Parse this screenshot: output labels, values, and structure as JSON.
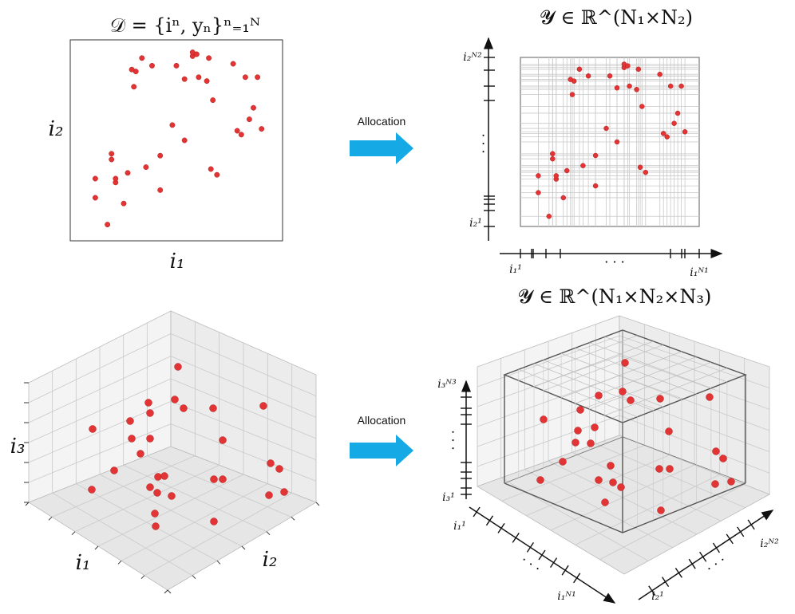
{
  "titles": {
    "dataset": "𝒟 = {iⁿ, yₙ}ⁿ₌₁ᴺ",
    "tensor2d": "𝓨 ∈ ℝ^(N₁×N₂)",
    "tensor3d": "𝓨 ∈ ℝ^(N₁×N₂×N₃)"
  },
  "arrow_labels": {
    "top": "Allocation",
    "bottom": "Allocation"
  },
  "axis_labels": {
    "scatter_x": "i₁",
    "scatter_y": "i₂",
    "cube_left_x": "i₁",
    "cube_left_y": "i₂",
    "cube_left_z": "i₃",
    "grid_x_start": "i₁¹",
    "grid_x_end": "i₁ᴺ¹",
    "grid_y_start": "i₂¹",
    "grid_y_end": "i₂ᴺ²",
    "cube_right_z_start": "i₃¹",
    "cube_right_z_end": "i₃ᴺ³",
    "cube_right_x_start": "i₁¹",
    "cube_right_x_end": "i₁ᴺ¹",
    "cube_right_y_start": "i₂¹",
    "cube_right_y_end": "i₂ᴺ²",
    "ellipsis": "· · ·"
  },
  "colors": {
    "point": "#e23434",
    "arrow": "#15a9e6",
    "grid": "#c9c9c9"
  },
  "chart_data": [
    {
      "type": "scatter",
      "title": "𝒟 = {iⁿ, yₙ}ⁿ₌₁ᴺ",
      "xlabel": "i₁",
      "ylabel": "i₂",
      "xlim": [
        0,
        1
      ],
      "ylim": [
        0,
        1
      ],
      "points": [
        [
          0.16,
          0.06
        ],
        [
          0.2,
          0.28
        ],
        [
          0.2,
          0.3
        ],
        [
          0.18,
          0.43
        ],
        [
          0.18,
          0.4
        ],
        [
          0.1,
          0.3
        ],
        [
          0.1,
          0.2
        ],
        [
          0.24,
          0.17
        ],
        [
          0.26,
          0.33
        ],
        [
          0.42,
          0.24
        ],
        [
          0.35,
          0.36
        ],
        [
          0.42,
          0.42
        ],
        [
          0.48,
          0.58
        ],
        [
          0.54,
          0.5
        ],
        [
          0.68,
          0.71
        ],
        [
          0.61,
          0.83
        ],
        [
          0.54,
          0.82
        ],
        [
          0.65,
          0.81
        ],
        [
          0.66,
          0.93
        ],
        [
          0.58,
          0.94
        ],
        [
          0.58,
          0.96
        ],
        [
          0.6,
          0.95
        ],
        [
          0.3,
          0.86
        ],
        [
          0.28,
          0.87
        ],
        [
          0.5,
          0.89
        ],
        [
          0.38,
          0.89
        ],
        [
          0.29,
          0.78
        ],
        [
          0.33,
          0.93
        ],
        [
          0.8,
          0.55
        ],
        [
          0.82,
          0.53
        ],
        [
          0.67,
          0.35
        ],
        [
          0.7,
          0.32
        ],
        [
          0.92,
          0.56
        ],
        [
          0.88,
          0.67
        ],
        [
          0.86,
          0.61
        ],
        [
          0.84,
          0.83
        ],
        [
          0.9,
          0.83
        ],
        [
          0.78,
          0.9
        ]
      ]
    }
  ]
}
